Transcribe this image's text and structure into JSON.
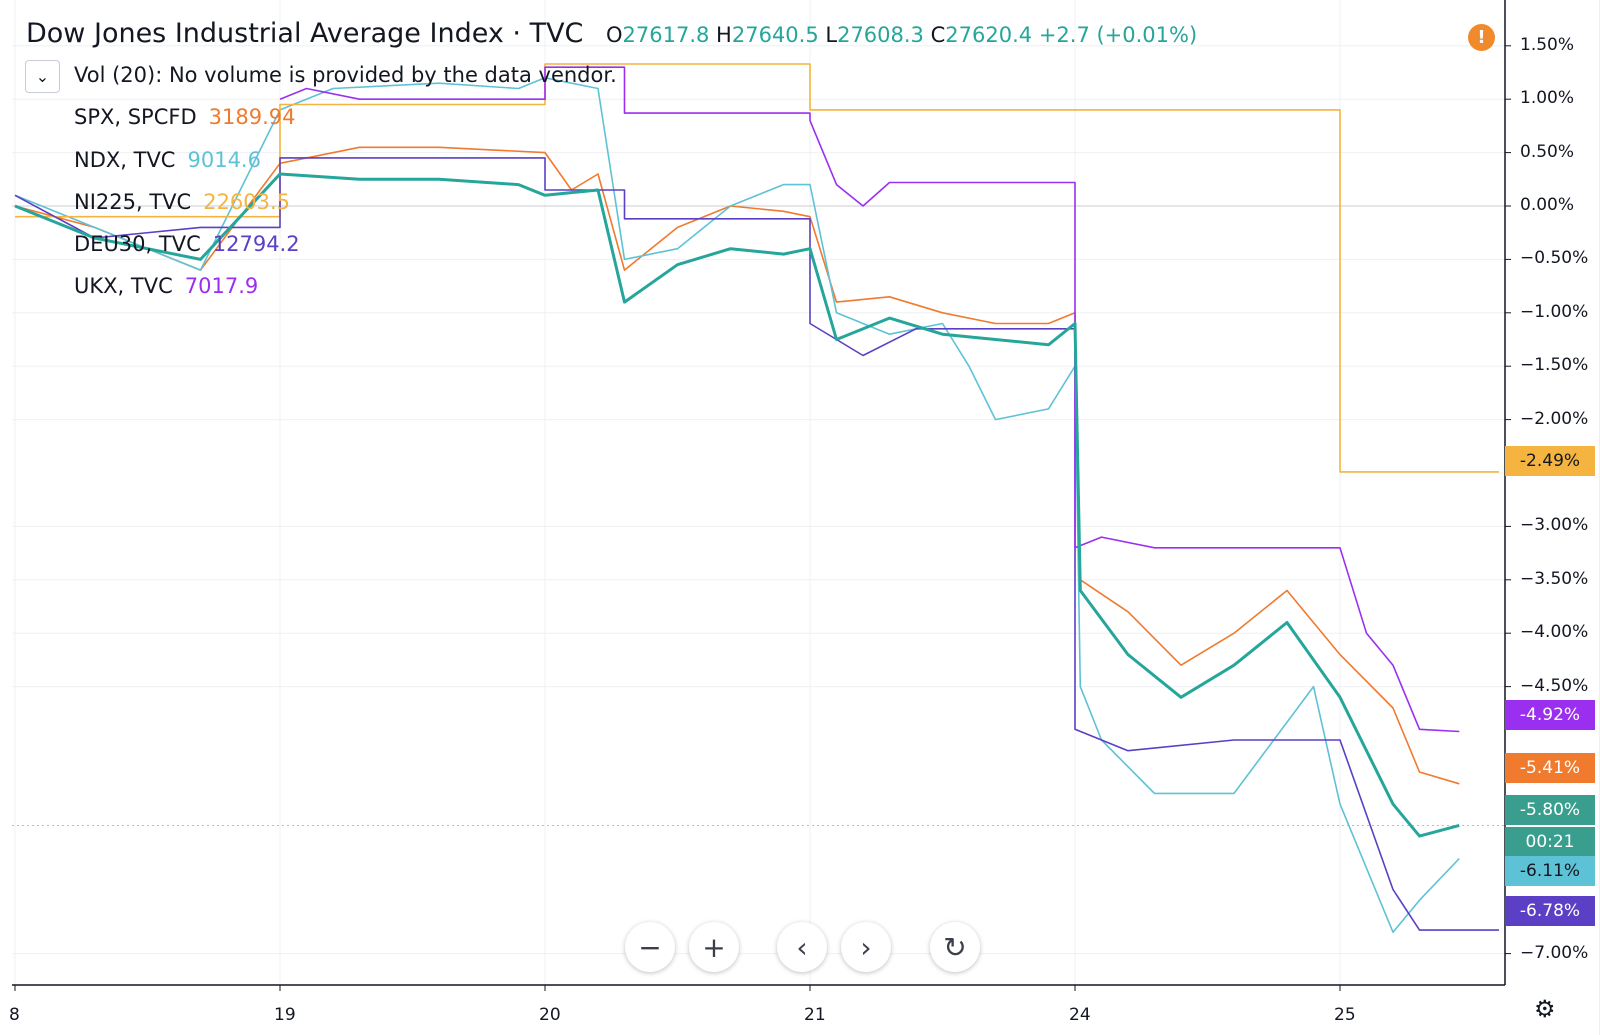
{
  "header": {
    "title": "Dow Jones Industrial Average Index · TVC",
    "o_label": "O",
    "o_value": "27617.8",
    "h_label": "H",
    "h_value": "27640.5",
    "l_label": "L",
    "l_value": "27608.3",
    "c_label": "C",
    "c_value": "27620.4",
    "change": "+2.7 (+0.01%)"
  },
  "volume_note": "Vol (20): No volume is provided by the data vendor.",
  "alert_icon": "!",
  "legend": [
    {
      "name": "SPX, SPCFD",
      "value": "3189.94",
      "color": "#f07a2e"
    },
    {
      "name": "NDX, TVC",
      "value": "9014.6",
      "color": "#5ec2d6"
    },
    {
      "name": "NI225, TVC",
      "value": "22603.5",
      "color": "#f4b43f"
    },
    {
      "name": "DEU30, TVC",
      "value": "12794.2",
      "color": "#5b3fc4"
    },
    {
      "name": "UKX, TVC",
      "value": "7017.9",
      "color": "#9b2ff0"
    }
  ],
  "badges": [
    {
      "text": "-2.49%",
      "color": "#f4b43f",
      "pct": -2.49
    },
    {
      "text": "-4.92%",
      "color": "#9b2ff0",
      "pct": -4.92
    },
    {
      "text": "-5.41%",
      "color": "#f07a2e",
      "pct": -5.41
    },
    {
      "text": "-5.80%",
      "color": "#3a9e8f",
      "pct": -5.8
    },
    {
      "text": "00:21",
      "color": "#3a9e8f",
      "pct": null
    },
    {
      "text": "-6.11%",
      "color": "#5ec2d6",
      "pct": -6.11
    },
    {
      "text": "-6.78%",
      "color": "#5b3fc4",
      "pct": -6.78
    }
  ],
  "nav": {
    "zoom_out": "−",
    "zoom_in": "+",
    "back": "‹",
    "forward": "›",
    "reset": "↻",
    "settings": "⚙"
  },
  "chart_data": {
    "type": "line",
    "title": "Dow Jones Industrial Average Index · TVC",
    "y_unit": "%",
    "ylim": [
      -7.25,
      1.85
    ],
    "y_ticks": [
      "1.50%",
      "1.00%",
      "0.50%",
      "0.00%",
      "−0.50%",
      "−1.00%",
      "−1.50%",
      "−2.00%",
      "−3.00%",
      "−3.50%",
      "−4.00%",
      "−4.50%",
      "−7.00%"
    ],
    "y_tick_values": [
      1.5,
      1.0,
      0.5,
      0.0,
      -0.5,
      -1.0,
      -1.5,
      -2.0,
      -3.0,
      -3.5,
      -4.0,
      -4.5,
      -7.0
    ],
    "x_ticks": [
      "8",
      "19",
      "20",
      "21",
      "24",
      "25"
    ],
    "x_tick_values": [
      0,
      1,
      2,
      3,
      4,
      5
    ],
    "xlim": [
      0,
      5.6
    ],
    "grid": true,
    "series": [
      {
        "name": "SPX, SPCFD",
        "color": "#f07a2e",
        "x": [
          0,
          0.3,
          0.7,
          1.0,
          1.3,
          1.6,
          2.0,
          2.1,
          2.2,
          2.3,
          2.5,
          2.7,
          2.9,
          3.0,
          3.1,
          3.3,
          3.5,
          3.7,
          3.9,
          4.0,
          4.02,
          4.2,
          4.4,
          4.6,
          4.8,
          5.0,
          5.2,
          5.3,
          5.45
        ],
        "y": [
          0.0,
          -0.2,
          -0.6,
          0.4,
          0.55,
          0.55,
          0.5,
          0.15,
          0.3,
          -0.6,
          -0.2,
          0.0,
          -0.05,
          -0.1,
          -0.9,
          -0.85,
          -1.0,
          -1.1,
          -1.1,
          -1.0,
          -3.5,
          -3.8,
          -4.3,
          -4.0,
          -3.6,
          -4.2,
          -4.7,
          -5.3,
          -5.41
        ]
      },
      {
        "name": "NDX, TVC",
        "color": "#5ec2d6",
        "x": [
          0,
          0.3,
          0.7,
          1.0,
          1.2,
          1.6,
          1.9,
          2.0,
          2.2,
          2.3,
          2.5,
          2.7,
          2.9,
          3.0,
          3.1,
          3.3,
          3.5,
          3.6,
          3.7,
          3.9,
          4.0,
          4.02,
          4.1,
          4.3,
          4.6,
          4.9,
          5.0,
          5.2,
          5.3,
          5.45
        ],
        "y": [
          0.1,
          -0.2,
          -0.6,
          0.9,
          1.1,
          1.15,
          1.1,
          1.2,
          1.1,
          -0.5,
          -0.4,
          0.0,
          0.2,
          0.2,
          -1.0,
          -1.2,
          -1.1,
          -1.5,
          -2.0,
          -1.9,
          -1.5,
          -4.5,
          -5.0,
          -5.5,
          -5.5,
          -4.5,
          -5.6,
          -6.8,
          -6.5,
          -6.11
        ]
      },
      {
        "name": "NI225, TVC",
        "color": "#f4b43f",
        "x": [
          0,
          1.0,
          1.0,
          2.0,
          2.0,
          3.0,
          3.0,
          5.0,
          5.0,
          5.6
        ],
        "y": [
          -0.1,
          -0.1,
          0.95,
          0.95,
          1.33,
          1.33,
          0.9,
          0.9,
          -2.49,
          -2.49
        ]
      },
      {
        "name": "DEU30, TVC",
        "color": "#5b3fc4",
        "x": [
          0,
          0.3,
          0.7,
          1.0,
          1.0,
          1.3,
          2.0,
          2.0,
          2.3,
          2.3,
          3.0,
          3.0,
          3.2,
          3.4,
          3.9,
          4.0,
          4.0,
          4.2,
          4.6,
          5.0,
          5.2,
          5.3,
          5.6
        ],
        "y": [
          0.1,
          -0.3,
          -0.2,
          -0.2,
          0.45,
          0.45,
          0.45,
          0.15,
          0.15,
          -0.12,
          -0.12,
          -1.1,
          -1.4,
          -1.15,
          -1.15,
          -1.15,
          -4.9,
          -5.1,
          -5.0,
          -5.0,
          -6.4,
          -6.78,
          -6.78
        ]
      },
      {
        "name": "UKX, TVC",
        "color": "#9b2ff0",
        "x": [
          1.0,
          1.1,
          1.3,
          2.0,
          2.0,
          2.3,
          2.3,
          3.0,
          3.0,
          3.1,
          3.2,
          3.3,
          4.0,
          4.0,
          4.1,
          4.3,
          4.6,
          5.0,
          5.1,
          5.2,
          5.3,
          5.45
        ],
        "y": [
          1.0,
          1.1,
          1.0,
          1.0,
          1.3,
          1.3,
          0.87,
          0.87,
          0.8,
          0.2,
          0.0,
          0.22,
          0.22,
          -3.2,
          -3.1,
          -3.2,
          -3.2,
          -3.2,
          -4.0,
          -4.3,
          -4.9,
          -4.92
        ]
      },
      {
        "name": "Dow Jones Industrial Average Index · TVC",
        "color": "#26a69a",
        "x": [
          0,
          0.3,
          0.7,
          1.0,
          1.3,
          1.6,
          1.9,
          2.0,
          2.2,
          2.3,
          2.5,
          2.7,
          2.9,
          3.0,
          3.1,
          3.3,
          3.5,
          3.7,
          3.9,
          4.0,
          4.02,
          4.2,
          4.4,
          4.6,
          4.8,
          5.0,
          5.2,
          5.3,
          5.45
        ],
        "y": [
          0.0,
          -0.3,
          -0.5,
          0.3,
          0.25,
          0.25,
          0.2,
          0.1,
          0.15,
          -0.9,
          -0.55,
          -0.4,
          -0.45,
          -0.4,
          -1.25,
          -1.05,
          -1.2,
          -1.25,
          -1.3,
          -1.1,
          -3.6,
          -4.2,
          -4.6,
          -4.3,
          -3.9,
          -4.6,
          -5.6,
          -5.9,
          -5.8
        ]
      }
    ]
  }
}
